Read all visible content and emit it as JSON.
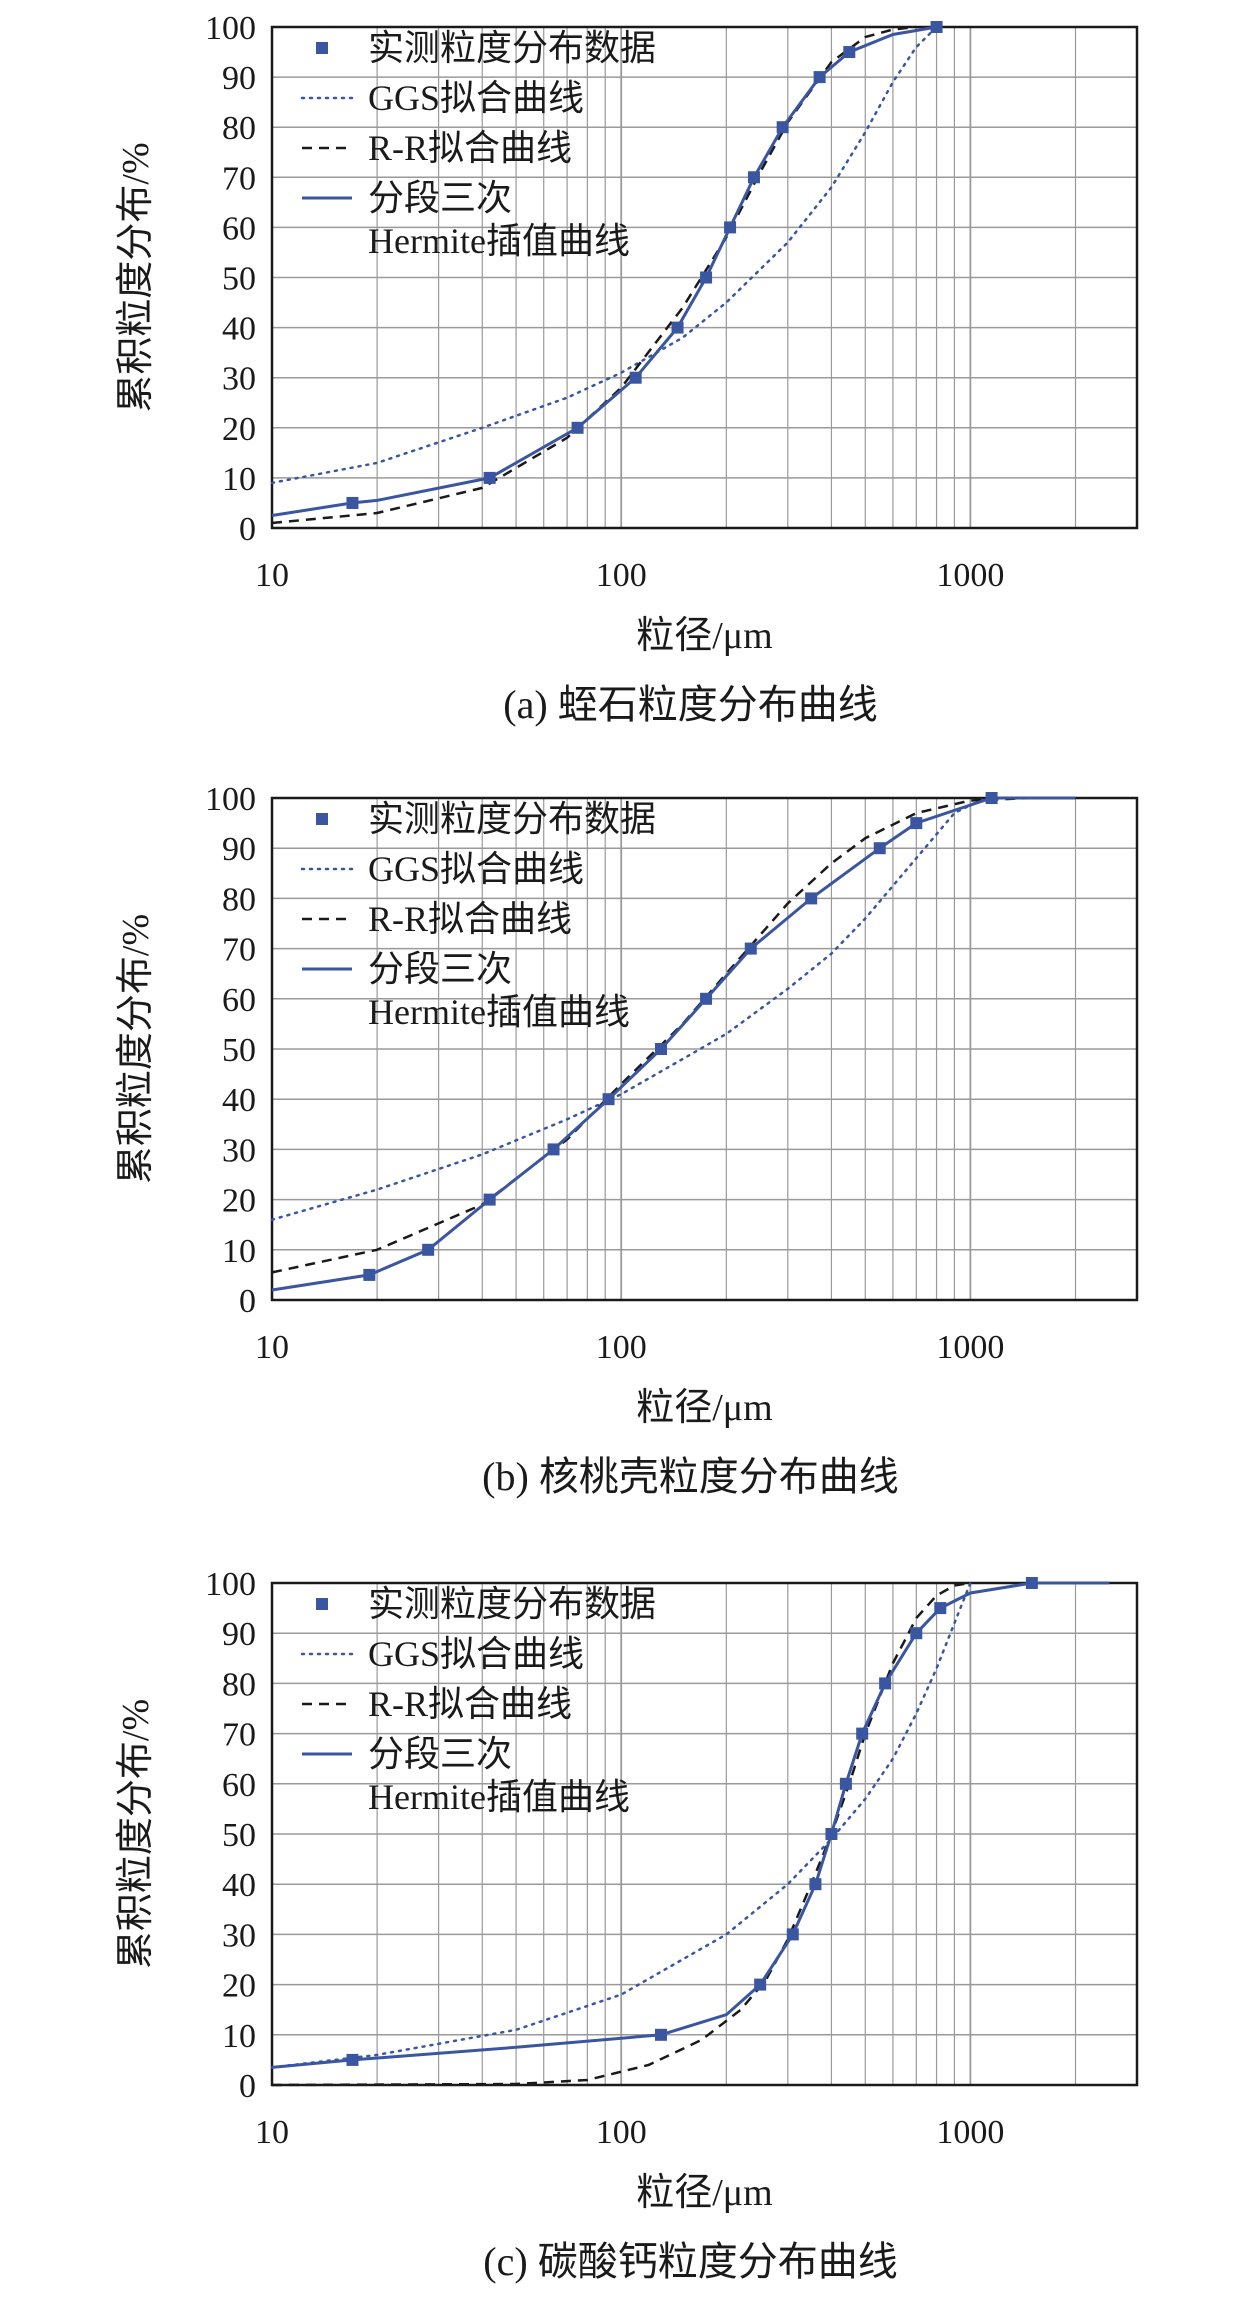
{
  "chart_data": [
    {
      "type": "line",
      "caption": "(a) 蛭石粒度分布曲线",
      "xlabel": "粒径/μm",
      "ylabel": "累积粒度分布/%",
      "xscale": "log",
      "xlim": [
        10,
        3000
      ],
      "ylim": [
        0,
        100
      ],
      "x_ticks": [
        "10",
        "100",
        "1000"
      ],
      "y_ticks": [
        "0",
        "10",
        "20",
        "30",
        "40",
        "50",
        "60",
        "70",
        "80",
        "90",
        "100"
      ],
      "grid": true,
      "legend_position": "top-left",
      "legend": [
        "实测粒度分布数据",
        "GGS拟合曲线",
        "R-R拟合曲线",
        "分段三次",
        "Hermite插值曲线"
      ],
      "series": [
        {
          "name": "实测粒度分布数据",
          "style": "markers",
          "x": [
            17,
            42,
            75,
            110,
            145,
            175,
            205,
            240,
            290,
            370,
            450,
            800
          ],
          "y": [
            5,
            10,
            20,
            30,
            40,
            50,
            60,
            70,
            80,
            90,
            95,
            100
          ]
        },
        {
          "name": "GGS拟合曲线",
          "style": "dotted",
          "x": [
            10,
            20,
            40,
            70,
            100,
            150,
            200,
            300,
            400,
            500,
            600,
            700,
            800
          ],
          "y": [
            9,
            13,
            20,
            26,
            31,
            38,
            45,
            57,
            68,
            79,
            89,
            96,
            100
          ]
        },
        {
          "name": "R-R拟合曲线",
          "style": "dashed",
          "x": [
            10,
            20,
            40,
            70,
            100,
            150,
            200,
            250,
            300,
            400,
            500,
            600,
            700
          ],
          "y": [
            1,
            3,
            8,
            18,
            28,
            44,
            58,
            71,
            81,
            93,
            98,
            99.5,
            100
          ]
        },
        {
          "name": "分段三次Hermite插值曲线",
          "style": "solid",
          "x": [
            10,
            17,
            20,
            42,
            75,
            110,
            145,
            175,
            205,
            240,
            290,
            370,
            450,
            600,
            800
          ],
          "y": [
            2.5,
            5,
            5.5,
            10,
            20,
            30,
            40,
            50,
            60,
            70,
            80,
            90,
            95,
            98.5,
            100
          ]
        }
      ]
    },
    {
      "type": "line",
      "caption": "(b) 核桃壳粒度分布曲线",
      "xlabel": "粒径/μm",
      "ylabel": "累积粒度分布/%",
      "xscale": "log",
      "xlim": [
        10,
        3000
      ],
      "ylim": [
        0,
        100
      ],
      "x_ticks": [
        "10",
        "100",
        "1000"
      ],
      "y_ticks": [
        "0",
        "10",
        "20",
        "30",
        "40",
        "50",
        "60",
        "70",
        "80",
        "90",
        "100"
      ],
      "grid": true,
      "legend_position": "top-left",
      "legend": [
        "实测粒度分布数据",
        "GGS拟合曲线",
        "R-R拟合曲线",
        "分段三次",
        "Hermite插值曲线"
      ],
      "series": [
        {
          "name": "实测粒度分布数据",
          "style": "markers",
          "x": [
            19,
            28,
            42,
            64,
            92,
            130,
            175,
            235,
            350,
            550,
            700,
            1150
          ],
          "y": [
            5,
            10,
            20,
            30,
            40,
            50,
            60,
            70,
            80,
            90,
            95,
            100
          ]
        },
        {
          "name": "GGS拟合曲线",
          "style": "dotted",
          "x": [
            10,
            20,
            40,
            70,
            100,
            150,
            200,
            300,
            400,
            500,
            700,
            900,
            1100
          ],
          "y": [
            16,
            22,
            29,
            36,
            41,
            48,
            53,
            62,
            69,
            76,
            88,
            97,
            100
          ]
        },
        {
          "name": "R-R拟合曲线",
          "style": "dashed",
          "x": [
            10,
            20,
            40,
            70,
            100,
            150,
            200,
            300,
            400,
            500,
            700,
            1000,
            1500
          ],
          "y": [
            5.5,
            10,
            19,
            32,
            43,
            55,
            65,
            79,
            87,
            92,
            97,
            99.5,
            100
          ]
        },
        {
          "name": "分段三次Hermite插值曲线",
          "style": "solid",
          "x": [
            10,
            19,
            28,
            42,
            64,
            92,
            130,
            175,
            235,
            350,
            550,
            700,
            1150,
            2000
          ],
          "y": [
            2,
            5,
            10,
            20,
            30,
            40,
            50,
            60,
            70,
            80,
            90,
            95,
            100,
            100
          ]
        }
      ]
    },
    {
      "type": "line",
      "caption": "(c) 碳酸钙粒度分布曲线",
      "xlabel": "粒径/μm",
      "ylabel": "累积粒度分布/%",
      "xscale": "log",
      "xlim": [
        10,
        3000
      ],
      "ylim": [
        0,
        100
      ],
      "x_ticks": [
        "10",
        "100",
        "1000"
      ],
      "y_ticks": [
        "0",
        "10",
        "20",
        "30",
        "40",
        "50",
        "60",
        "70",
        "80",
        "90",
        "100"
      ],
      "grid": true,
      "legend_position": "top-left",
      "legend": [
        "实测粒度分布数据",
        "GGS拟合曲线",
        "R-R拟合曲线",
        "分段三次",
        "Hermite插值曲线"
      ],
      "series": [
        {
          "name": "实测粒度分布数据",
          "style": "markers",
          "x": [
            17,
            130,
            250,
            310,
            360,
            400,
            440,
            490,
            570,
            700,
            820,
            1500
          ],
          "y": [
            5,
            10,
            20,
            30,
            40,
            50,
            60,
            70,
            80,
            90,
            95,
            100
          ]
        },
        {
          "name": "GGS拟合曲线",
          "style": "dotted",
          "x": [
            10,
            20,
            50,
            100,
            200,
            300,
            400,
            500,
            600,
            700,
            800,
            900,
            1000
          ],
          "y": [
            3.5,
            6,
            11,
            18,
            30,
            40,
            49,
            57,
            65,
            74,
            83,
            92,
            100
          ]
        },
        {
          "name": "R-R拟合曲线",
          "style": "dashed",
          "x": [
            10,
            50,
            80,
            120,
            170,
            220,
            260,
            300,
            350,
            400,
            450,
            500,
            600,
            700,
            800,
            900,
            1000
          ],
          "y": [
            0,
            0.2,
            1,
            4,
            9,
            15,
            21,
            29,
            40,
            50,
            60,
            70,
            84,
            93,
            97.5,
            99.5,
            100
          ]
        },
        {
          "name": "分段三次Hermite插值曲线",
          "style": "solid",
          "x": [
            10,
            17,
            50,
            130,
            200,
            250,
            310,
            360,
            400,
            440,
            490,
            570,
            700,
            820,
            1000,
            1500,
            2500
          ],
          "y": [
            3.5,
            5,
            7.5,
            10,
            14,
            20,
            30,
            40,
            50,
            60,
            70,
            80,
            90,
            95,
            98,
            100,
            100
          ]
        }
      ]
    }
  ],
  "colors": {
    "series": "#3a56a0",
    "rr": "#1a1a1a",
    "grid": "#9a9a9a",
    "axis": "#1a1a1a"
  }
}
